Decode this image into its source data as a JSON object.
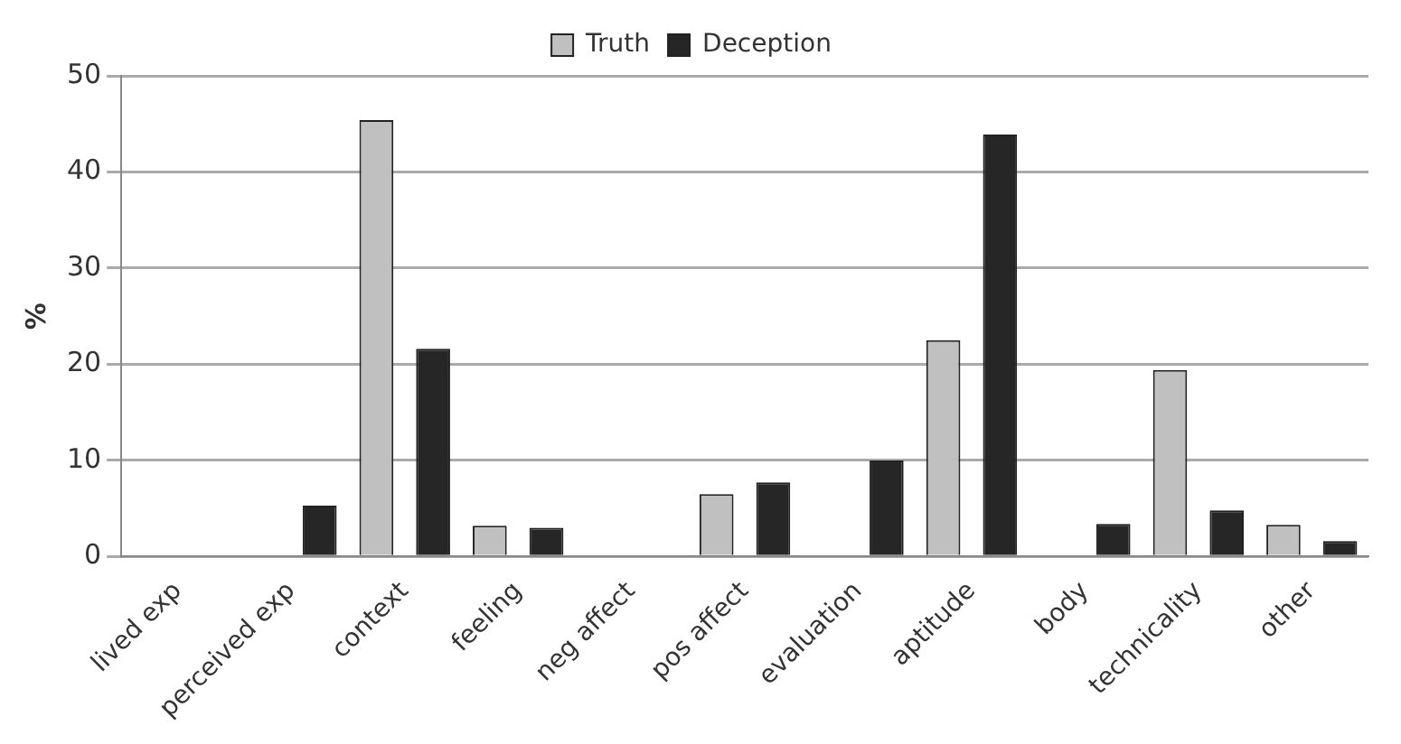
{
  "chart_data": {
    "type": "bar",
    "ylabel": "%",
    "categories": [
      "lived exp",
      "perceived exp",
      "context",
      "feeling",
      "neg affect",
      "pos affect",
      "evaluation",
      "aptitude",
      "body",
      "technicality",
      "other"
    ],
    "series": [
      {
        "name": "Truth",
        "color": "#c0c0c0",
        "values": [
          0,
          0,
          45.4,
          3.2,
          0,
          6.5,
          0,
          22.5,
          0,
          19.4,
          3.3
        ]
      },
      {
        "name": "Deception",
        "color": "#262626",
        "values": [
          0,
          5.3,
          21.6,
          3.0,
          0,
          7.7,
          10.0,
          43.9,
          3.4,
          4.8,
          1.6
        ]
      }
    ],
    "ylim": [
      0,
      50
    ],
    "yticks": [
      0,
      10,
      20,
      30,
      40,
      50
    ],
    "grid": "y",
    "legend": "top"
  }
}
